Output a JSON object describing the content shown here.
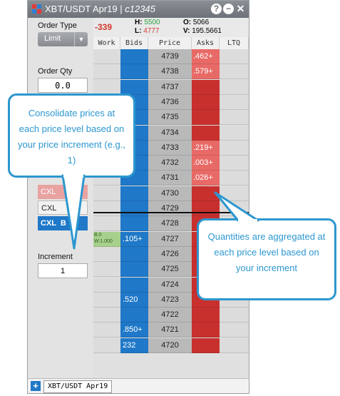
{
  "window": {
    "title_main": "XBT/USDT Apr19 | ",
    "title_account": "c12345",
    "buttons": [
      "?",
      "−",
      "✕"
    ],
    "icons": [
      "flag-icon",
      "help-icon",
      "minimize-icon",
      "close-icon"
    ]
  },
  "left_panel": {
    "order_type_label": "Order Type",
    "order_type_value": "Limit",
    "order_type_chevron": "▼",
    "order_qty_label": "Order Qty",
    "order_qty_value": "0.0",
    "cxl_buttons": [
      "CXL",
      "CXL",
      "CXL  B"
    ],
    "increment_label": "Increment",
    "increment_value": "1"
  },
  "stats": {
    "change": "-339",
    "high_label": "H:",
    "high": "5500",
    "low_label": "L:",
    "low": "4777",
    "open_label": "O:",
    "open": "5066",
    "volume_label": "V:",
    "volume": "195.5661"
  },
  "columns": [
    "Work",
    "Bids",
    "Price",
    "Asks",
    "LTQ"
  ],
  "ladder": [
    {
      "price": "4739",
      "bid": "",
      "ask": ".462+",
      "ask_hl": true
    },
    {
      "price": "4738",
      "bid": "",
      "ask": ".579+",
      "ask_hl": true
    },
    {
      "price": "4737",
      "bid": "",
      "ask": "",
      "ask_hl": false
    },
    {
      "price": "4736",
      "bid": "",
      "ask": "",
      "ask_hl": false
    },
    {
      "price": "4735",
      "bid": "",
      "ask": "",
      "ask_hl": false
    },
    {
      "price": "4734",
      "bid": "",
      "ask": "",
      "ask_hl": false
    },
    {
      "price": "4733",
      "bid": "",
      "ask": ".219+",
      "ask_hl": true
    },
    {
      "price": "4732",
      "bid": "",
      "ask": ".003+",
      "ask_hl": true
    },
    {
      "price": "4731",
      "bid": "",
      "ask": ".026+",
      "ask_hl": true
    },
    {
      "price": "4730",
      "bid": "",
      "ask": "",
      "ask_hl": false
    },
    {
      "price": "4729",
      "bid": "",
      "ask": "",
      "ask_hl": false
    },
    {
      "price": "4728",
      "bid": "",
      "ask": "",
      "ask_hl": false
    },
    {
      "price": "4727",
      "bid": ".105+",
      "ask": "",
      "ask_hl": false,
      "work": "B:0\nW:1.000"
    },
    {
      "price": "4726",
      "bid": "",
      "ask": "",
      "ask_hl": false
    },
    {
      "price": "4725",
      "bid": "",
      "ask": "",
      "ask_hl": false
    },
    {
      "price": "4724",
      "bid": "",
      "ask": "",
      "ask_hl": false
    },
    {
      "price": "4723",
      "bid": ".520",
      "ask": "",
      "ask_hl": false
    },
    {
      "price": "4722",
      "bid": "",
      "ask": "",
      "ask_hl": false
    },
    {
      "price": "4721",
      "bid": ".850+",
      "ask": "",
      "ask_hl": false
    },
    {
      "price": "4720",
      "bid": "232",
      "ask": "",
      "ask_hl": false
    }
  ],
  "footer": {
    "plus": "+",
    "tab": "XBT/USDT Apr19"
  },
  "callouts": [
    "Consolidate prices at each price level based on your price increment (e.g., 1)",
    "Quantities are aggregated at each price level based on your increment"
  ],
  "colors": {
    "bids": "#1f78c8",
    "asks": "#c8302e",
    "asks_highlight": "#e86a66",
    "price": "#b9b9b9",
    "callout": "#2c97cf",
    "negative": "#d03a2f",
    "high": "#2e9e3e",
    "low": "#d03a2f"
  }
}
